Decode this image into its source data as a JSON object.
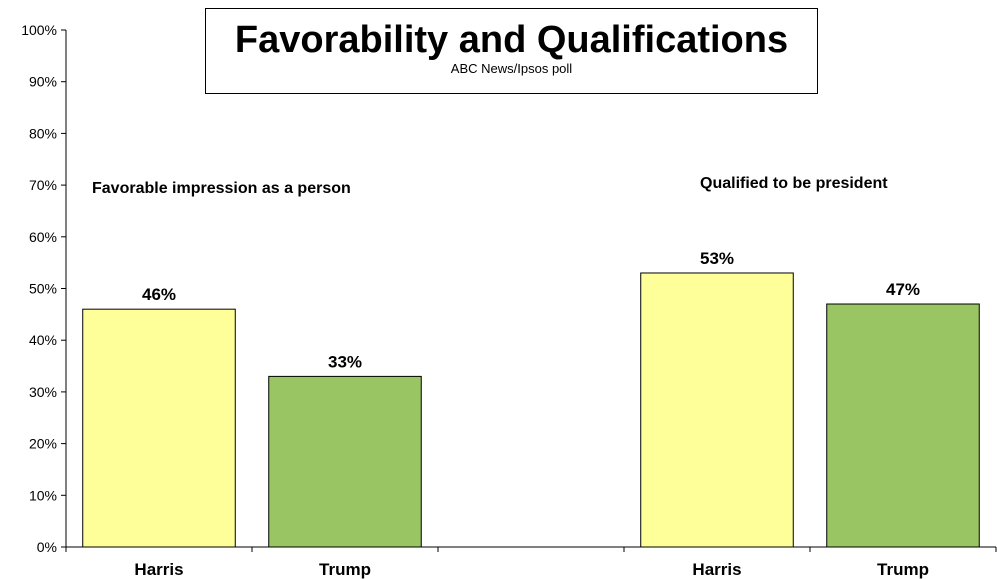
{
  "chart_data": {
    "type": "bar",
    "title": "Favorability and Qualifications",
    "subtitle": "ABC News/Ipsos  poll",
    "ylim": [
      0,
      100
    ],
    "y_ticks": [
      "0%",
      "10%",
      "20%",
      "30%",
      "40%",
      "50%",
      "60%",
      "70%",
      "80%",
      "90%",
      "100%"
    ],
    "grid": false,
    "categories": [
      "Harris",
      "Trump",
      "",
      "Harris",
      "Trump"
    ],
    "groups": [
      {
        "label": "Favorable impression as a person",
        "bars": [
          {
            "category": "Harris",
            "value": 46,
            "label": "46%",
            "color": "#FFFF99"
          },
          {
            "category": "Trump",
            "value": 33,
            "label": "33%",
            "color": "#99C663"
          }
        ]
      },
      {
        "label": "Qualified to be president",
        "bars": [
          {
            "category": "Harris",
            "value": 53,
            "label": "53%",
            "color": "#FFFF99"
          },
          {
            "category": "Trump",
            "value": 47,
            "label": "47%",
            "color": "#99C663"
          }
        ]
      }
    ]
  }
}
